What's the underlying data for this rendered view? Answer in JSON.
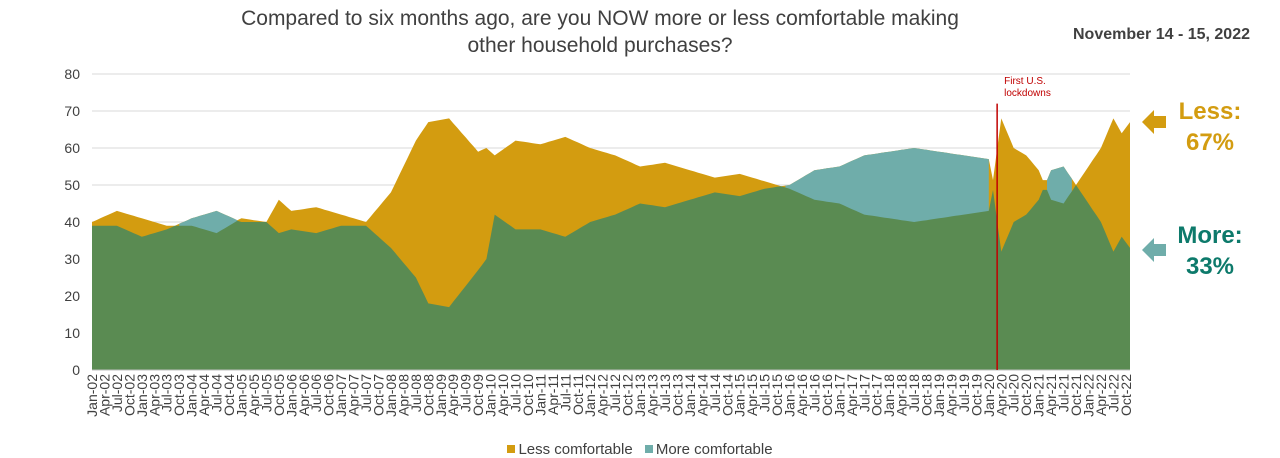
{
  "title_lines": [
    "Compared to six months ago, are you NOW more or less comfortable making",
    "other household purchases?"
  ],
  "date": "November 14 - 15, 2022",
  "callouts": {
    "less_label": "Less:",
    "less_value": "67%",
    "more_label": "More:",
    "more_value": "33%"
  },
  "annotation": {
    "text_line1": "First U.S.",
    "text_line2": "lockdowns",
    "x": "Mar-20"
  },
  "colors": {
    "less": "#d39c10",
    "more_area": "#6fadaa",
    "more_base": "#5a8b52",
    "annotation": "#c00000",
    "grid": "#d9d9d9",
    "text": "#404040"
  },
  "legend": [
    {
      "label": "Less comfortable",
      "color": "#d39c10"
    },
    {
      "label": "More comfortable",
      "color": "#6fadaa"
    }
  ],
  "chart_data": {
    "type": "area",
    "x_range": [
      "Jan-02",
      "Nov-22"
    ],
    "ylim": [
      0,
      80
    ],
    "y_ticks": [
      0,
      10,
      20,
      30,
      40,
      50,
      60,
      70,
      80
    ],
    "x_tick_labels": [
      "Jan-02",
      "Apr-02",
      "Jul-02",
      "Oct-02",
      "Jan-03",
      "Apr-03",
      "Jul-03",
      "Oct-03",
      "Jan-04",
      "Apr-04",
      "Jul-04",
      "Oct-04",
      "Jan-05",
      "Apr-05",
      "Jul-05",
      "Oct-05",
      "Jan-06",
      "Apr-06",
      "Jul-06",
      "Oct-06",
      "Jan-07",
      "Apr-07",
      "Jul-07",
      "Oct-07",
      "Jan-08",
      "Apr-08",
      "Jul-08",
      "Oct-08",
      "Jan-09",
      "Apr-09",
      "Jul-09",
      "Oct-09",
      "Jan-10",
      "Apr-10",
      "Jul-10",
      "Oct-10",
      "Jan-11",
      "Apr-11",
      "Jul-11",
      "Oct-11",
      "Jan-12",
      "Apr-12",
      "Jul-12",
      "Oct-12",
      "Jan-13",
      "Apr-13",
      "Jul-13",
      "Oct-13",
      "Jan-14",
      "Apr-14",
      "Jul-14",
      "Oct-14",
      "Jan-15",
      "Apr-15",
      "Jul-15",
      "Oct-15",
      "Jan-16",
      "Apr-16",
      "Jul-16",
      "Oct-16",
      "Jan-17",
      "Apr-17",
      "Jul-17",
      "Oct-17",
      "Jan-18",
      "Apr-18",
      "Jul-18",
      "Oct-18",
      "Jan-19",
      "Apr-19",
      "Jul-19",
      "Oct-19",
      "Jan-20",
      "Apr-20",
      "Jul-20",
      "Oct-20",
      "Jan-21",
      "Apr-21",
      "Jul-21",
      "Oct-21",
      "Jan-22",
      "Apr-22",
      "Jul-22",
      "Oct-22"
    ],
    "legend_position": "bottom",
    "grid": true,
    "series": [
      {
        "name": "Less comfortable",
        "points": [
          [
            "Jan-02",
            40
          ],
          [
            "Jul-02",
            43
          ],
          [
            "Jan-03",
            41
          ],
          [
            "Jul-03",
            39
          ],
          [
            "Jan-04",
            39
          ],
          [
            "Jul-04",
            37
          ],
          [
            "Jan-05",
            41
          ],
          [
            "Jul-05",
            40
          ],
          [
            "Oct-05",
            46
          ],
          [
            "Jan-06",
            43
          ],
          [
            "Jul-06",
            44
          ],
          [
            "Jan-07",
            42
          ],
          [
            "Jul-07",
            40
          ],
          [
            "Jan-08",
            48
          ],
          [
            "Jul-08",
            62
          ],
          [
            "Oct-08",
            67
          ],
          [
            "Mar-09",
            68
          ],
          [
            "Oct-09",
            59
          ],
          [
            "Dec-09",
            60
          ],
          [
            "Feb-10",
            58
          ],
          [
            "Jul-10",
            62
          ],
          [
            "Jan-11",
            61
          ],
          [
            "Jul-11",
            63
          ],
          [
            "Jan-12",
            60
          ],
          [
            "Jul-12",
            58
          ],
          [
            "Jan-13",
            55
          ],
          [
            "Jul-13",
            56
          ],
          [
            "Jan-14",
            54
          ],
          [
            "Jul-14",
            52
          ],
          [
            "Jan-15",
            53
          ],
          [
            "Jul-15",
            51
          ],
          [
            "Jan-16",
            49
          ],
          [
            "Jul-16",
            46
          ],
          [
            "Jan-17",
            45
          ],
          [
            "Jul-17",
            42
          ],
          [
            "Jan-18",
            41
          ],
          [
            "Jul-18",
            40
          ],
          [
            "Jan-19",
            41
          ],
          [
            "Jul-19",
            42
          ],
          [
            "Jan-20",
            43
          ],
          [
            "Apr-20",
            68
          ],
          [
            "Jul-20",
            60
          ],
          [
            "Oct-20",
            58
          ],
          [
            "Jan-21",
            54
          ],
          [
            "Apr-21",
            46
          ],
          [
            "Jul-21",
            45
          ],
          [
            "Oct-21",
            50
          ],
          [
            "Jan-22",
            55
          ],
          [
            "Apr-22",
            60
          ],
          [
            "Jul-22",
            68
          ],
          [
            "Sep-22",
            64
          ],
          [
            "Nov-22",
            67
          ]
        ]
      },
      {
        "name": "More comfortable",
        "points": [
          [
            "Jan-02",
            39
          ],
          [
            "Jul-02",
            39
          ],
          [
            "Jan-03",
            36
          ],
          [
            "Jul-03",
            38
          ],
          [
            "Jan-04",
            41
          ],
          [
            "Jul-04",
            43
          ],
          [
            "Jan-05",
            40
          ],
          [
            "Jul-05",
            40
          ],
          [
            "Oct-05",
            37
          ],
          [
            "Jan-06",
            38
          ],
          [
            "Jul-06",
            37
          ],
          [
            "Jan-07",
            39
          ],
          [
            "Jul-07",
            39
          ],
          [
            "Jan-08",
            33
          ],
          [
            "Jul-08",
            25
          ],
          [
            "Oct-08",
            18
          ],
          [
            "Mar-09",
            17
          ],
          [
            "Oct-09",
            27
          ],
          [
            "Dec-09",
            30
          ],
          [
            "Feb-10",
            42
          ],
          [
            "Jul-10",
            38
          ],
          [
            "Jan-11",
            38
          ],
          [
            "Jul-11",
            36
          ],
          [
            "Jan-12",
            40
          ],
          [
            "Jul-12",
            42
          ],
          [
            "Jan-13",
            45
          ],
          [
            "Jul-13",
            44
          ],
          [
            "Jan-14",
            46
          ],
          [
            "Jul-14",
            48
          ],
          [
            "Jan-15",
            47
          ],
          [
            "Jul-15",
            49
          ],
          [
            "Jan-16",
            50
          ],
          [
            "Jul-16",
            54
          ],
          [
            "Jan-17",
            55
          ],
          [
            "Jul-17",
            58
          ],
          [
            "Jan-18",
            59
          ],
          [
            "Jul-18",
            60
          ],
          [
            "Jan-19",
            59
          ],
          [
            "Jul-19",
            58
          ],
          [
            "Jan-20",
            57
          ],
          [
            "Apr-20",
            32
          ],
          [
            "Jul-20",
            40
          ],
          [
            "Oct-20",
            42
          ],
          [
            "Jan-21",
            46
          ],
          [
            "Apr-21",
            54
          ],
          [
            "Jul-21",
            55
          ],
          [
            "Oct-21",
            50
          ],
          [
            "Jan-22",
            45
          ],
          [
            "Apr-22",
            40
          ],
          [
            "Jul-22",
            32
          ],
          [
            "Sep-22",
            36
          ],
          [
            "Nov-22",
            33
          ]
        ]
      }
    ]
  }
}
